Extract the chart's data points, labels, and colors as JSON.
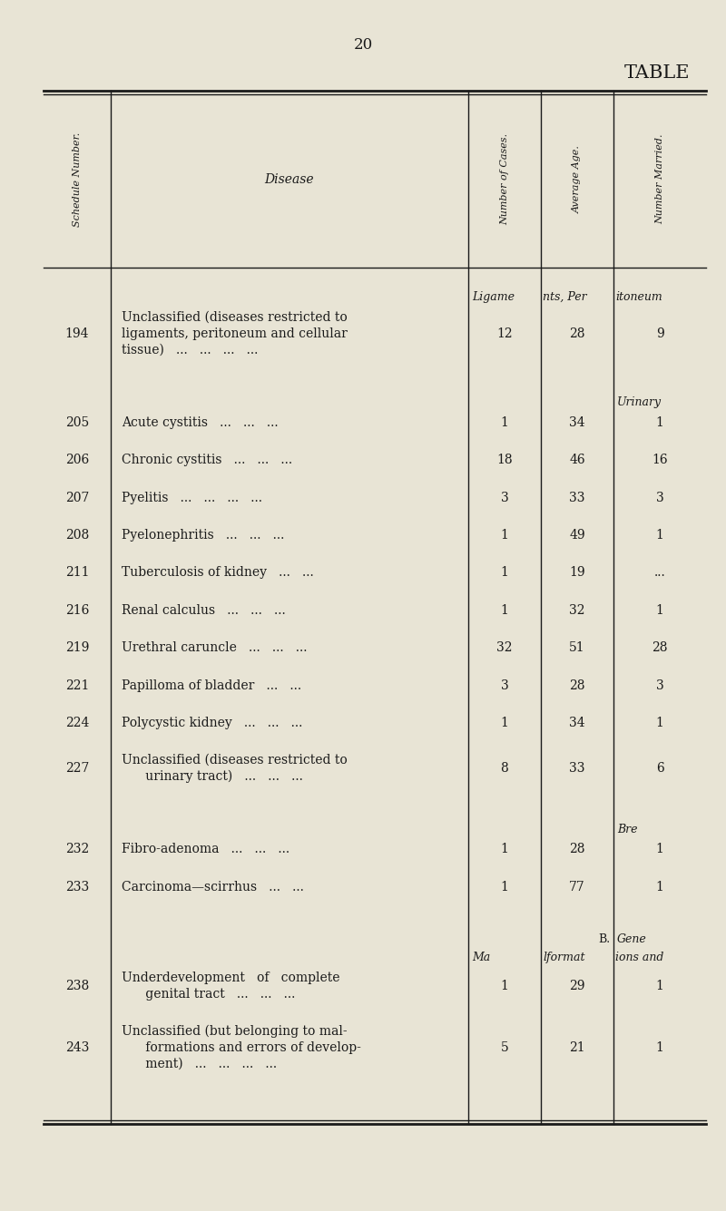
{
  "page_number": "20",
  "title": "TABLE",
  "bg_color": "#e8e4d5",
  "text_color": "#1a1a1a",
  "col_header_schedule": "Schedule Number.",
  "col_header_disease": "Disease",
  "col_header_cases": "Number of Cases.",
  "col_header_age": "Average Age.",
  "col_header_married": "Number Married.",
  "rows": [
    {
      "sched": "194",
      "disease": [
        "Unclassified (diseases restricted to",
        "ligaments, peritoneum and cellular",
        "tissue)   ...   ...   ...   ..."
      ],
      "cases": "12",
      "age": "28",
      "married": "9",
      "section": "ligame_nts_itoneum"
    },
    {
      "sched": "205",
      "disease": [
        "Acute cystitis   ...   ...   ..."
      ],
      "cases": "1",
      "age": "34",
      "married": "1",
      "section": "urinary"
    },
    {
      "sched": "206",
      "disease": [
        "Chronic cystitis   ...   ...   ..."
      ],
      "cases": "18",
      "age": "46",
      "married": "16",
      "section": ""
    },
    {
      "sched": "207",
      "disease": [
        "Pyelitis   ...   ...   ...   ..."
      ],
      "cases": "3",
      "age": "33",
      "married": "3",
      "section": ""
    },
    {
      "sched": "208",
      "disease": [
        "Pyelonephritis   ...   ...   ..."
      ],
      "cases": "1",
      "age": "49",
      "married": "1",
      "section": ""
    },
    {
      "sched": "211",
      "disease": [
        "Tuberculosis of kidney   ...   ..."
      ],
      "cases": "1",
      "age": "19",
      "married": "...",
      "section": ""
    },
    {
      "sched": "216",
      "disease": [
        "Renal calculus   ...   ...   ..."
      ],
      "cases": "1",
      "age": "32",
      "married": "1",
      "section": ""
    },
    {
      "sched": "219",
      "disease": [
        "Urethral caruncle   ...   ...   ..."
      ],
      "cases": "32",
      "age": "51",
      "married": "28",
      "section": ""
    },
    {
      "sched": "221",
      "disease": [
        "Papilloma of bladder   ...   ..."
      ],
      "cases": "3",
      "age": "28",
      "married": "3",
      "section": ""
    },
    {
      "sched": "224",
      "disease": [
        "Polycystic kidney   ...   ...   ..."
      ],
      "cases": "1",
      "age": "34",
      "married": "1",
      "section": ""
    },
    {
      "sched": "227",
      "disease": [
        "Unclassified (diseases restricted to",
        "      urinary tract)   ...   ...   ..."
      ],
      "cases": "8",
      "age": "33",
      "married": "6",
      "section": ""
    },
    {
      "sched": "232",
      "disease": [
        "Fibro-adenoma   ...   ...   ..."
      ],
      "cases": "1",
      "age": "28",
      "married": "1",
      "section": "bre"
    },
    {
      "sched": "233",
      "disease": [
        "Carcinoma—scirrhus   ...   ..."
      ],
      "cases": "1",
      "age": "77",
      "married": "1",
      "section": ""
    },
    {
      "sched": "238",
      "disease": [
        "Underdevelopment   of   complete",
        "      genital tract   ...   ...   ..."
      ],
      "cases": "1",
      "age": "29",
      "married": "1",
      "section": "b_gene_malformations"
    },
    {
      "sched": "243",
      "disease": [
        "Unclassified (but belonging to mal-",
        "      formations and errors of develop-",
        "      ment)   ...   ...   ...   ..."
      ],
      "cases": "5",
      "age": "21",
      "married": "1",
      "section": ""
    }
  ]
}
